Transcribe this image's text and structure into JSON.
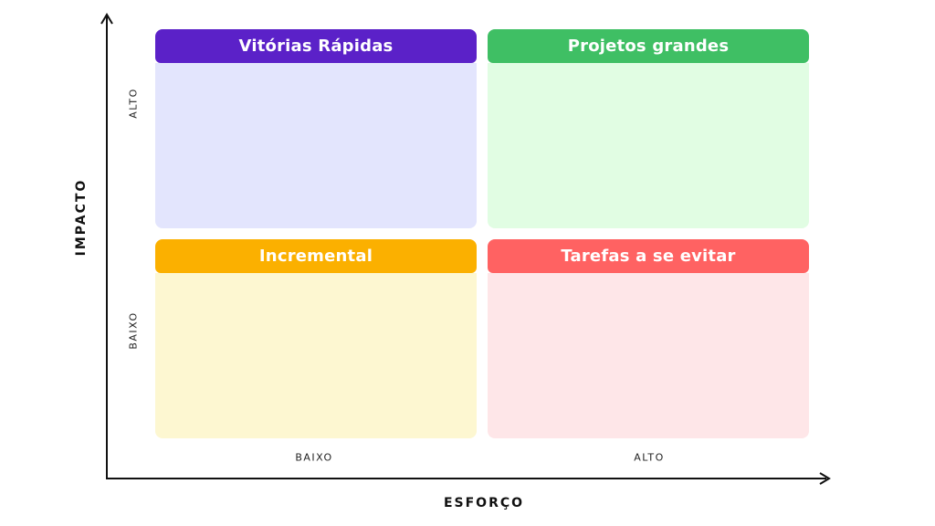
{
  "quadrants": [
    {
      "id": "quick-wins",
      "title": "Vitórias Rápidas",
      "header_color": "#5b21c8",
      "body_color": "#e3e5fd"
    },
    {
      "id": "big-projects",
      "title": "Projetos grandes",
      "header_color": "#3fbf64",
      "body_color": "#e1fde3"
    },
    {
      "id": "incremental",
      "title": "Incremental",
      "header_color": "#fbb000",
      "body_color": "#fdf7d1"
    },
    {
      "id": "tasks-to-avoid",
      "title": "Tarefas a se evitar",
      "header_color": "#ff6262",
      "body_color": "#fee6e8"
    }
  ],
  "y_axis": {
    "title": "IMPACTO",
    "high_label": "ALTO",
    "low_label": "BAIXO"
  },
  "x_axis": {
    "title": "ESFORÇO",
    "low_label": "BAIXO",
    "high_label": "ALTO"
  }
}
